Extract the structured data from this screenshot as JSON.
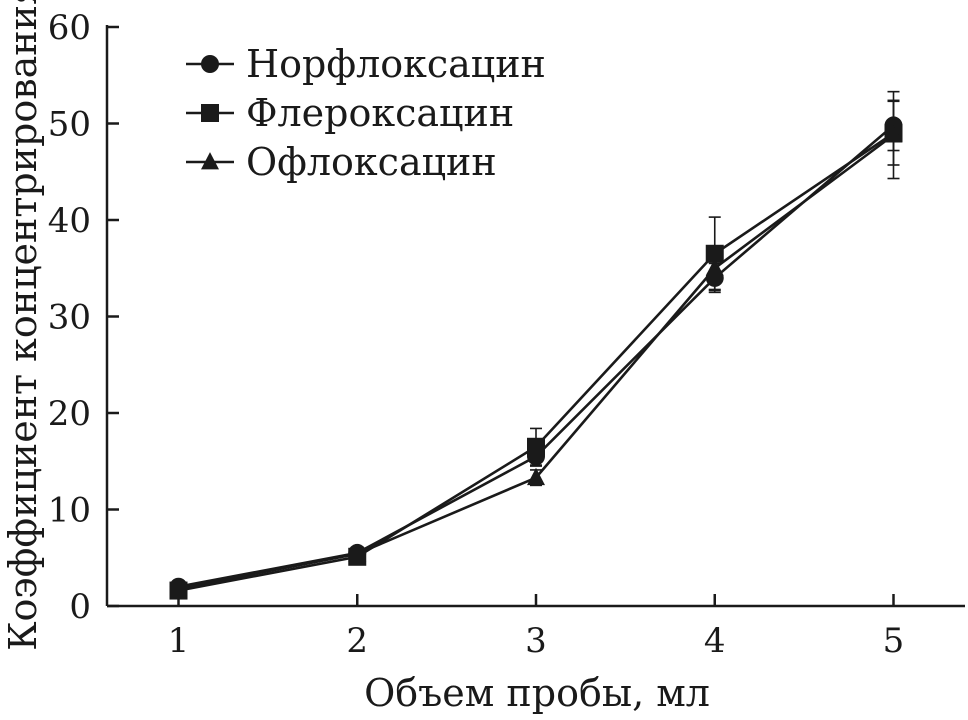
{
  "chart_data": {
    "type": "line",
    "xlabel": "Объем пробы, мл",
    "ylabel": "Коэффициент концентрирования",
    "xlim": [
      0.6,
      5.4
    ],
    "ylim": [
      0,
      60
    ],
    "x_ticks": [
      1,
      2,
      3,
      4,
      5
    ],
    "y_ticks": [
      0,
      10,
      20,
      30,
      40,
      50,
      60
    ],
    "grid": false,
    "legend_position": "top-left",
    "x": [
      1,
      2,
      3,
      4,
      5
    ],
    "series": [
      {
        "name": "Норфлоксацин",
        "marker": "circle",
        "values": [
          2.0,
          5.5,
          15.5,
          34.0,
          49.8
        ],
        "error": [
          0.3,
          0.5,
          1.0,
          1.5,
          2.6
        ]
      },
      {
        "name": "Флероксацин",
        "marker": "square",
        "values": [
          1.6,
          5.1,
          16.5,
          36.5,
          49.0
        ],
        "error": [
          0.3,
          0.4,
          1.9,
          3.8,
          3.3
        ]
      },
      {
        "name": "Офлоксацин",
        "marker": "triangle",
        "values": [
          1.8,
          5.4,
          13.3,
          35.0,
          48.8
        ],
        "error": [
          0.3,
          0.4,
          0.8,
          2.2,
          4.5
        ]
      }
    ],
    "colors": {
      "line": "#1a1a1a",
      "marker": "#1a1a1a",
      "background": "#ffffff"
    }
  }
}
